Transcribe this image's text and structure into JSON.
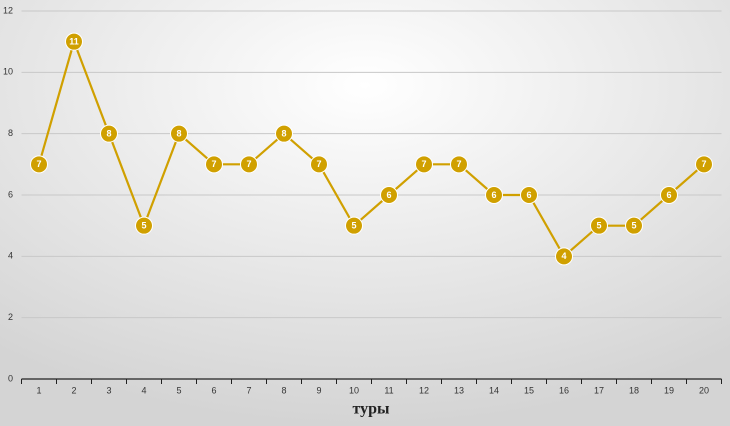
{
  "chart_data": {
    "type": "line",
    "x_label": "туры",
    "categories": [
      "1",
      "2",
      "3",
      "4",
      "5",
      "6",
      "7",
      "8",
      "9",
      "10",
      "11",
      "12",
      "13",
      "14",
      "15",
      "16",
      "17",
      "18",
      "19",
      "20"
    ],
    "values": [
      7,
      11,
      8,
      5,
      8,
      7,
      7,
      8,
      7,
      5,
      6,
      7,
      7,
      6,
      6,
      4,
      5,
      5,
      6,
      7
    ],
    "color": "#d0a000",
    "ylim": [
      0,
      12
    ],
    "yticks": [
      0,
      2,
      4,
      6,
      8,
      10,
      12
    ],
    "grid": true,
    "data_labels": true
  }
}
